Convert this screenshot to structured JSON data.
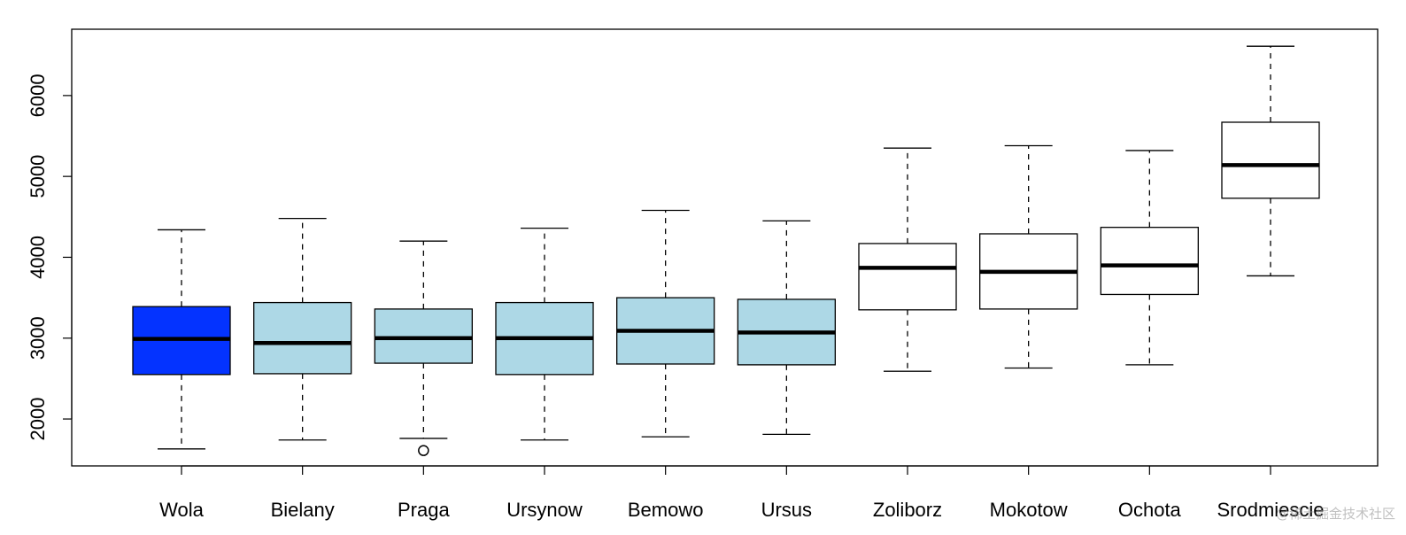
{
  "chart_data": {
    "type": "boxplot",
    "categories": [
      "Wola",
      "Bielany",
      "Praga",
      "Ursynow",
      "Bemowo",
      "Ursus",
      "Zoliborz",
      "Mokotow",
      "Ochota",
      "Srodmiescie"
    ],
    "boxes": [
      {
        "name": "Wola",
        "whisker_low": 1630,
        "q1": 2550,
        "median": 2990,
        "q3": 3390,
        "whisker_high": 4340,
        "outliers": [],
        "fill": "#0433ff"
      },
      {
        "name": "Bielany",
        "whisker_low": 1740,
        "q1": 2560,
        "median": 2940,
        "q3": 3440,
        "whisker_high": 4480,
        "outliers": [],
        "fill": "#add8e6"
      },
      {
        "name": "Praga",
        "whisker_low": 1760,
        "q1": 2690,
        "median": 3000,
        "q3": 3360,
        "whisker_high": 4200,
        "outliers": [
          1610
        ],
        "fill": "#add8e6"
      },
      {
        "name": "Ursynow",
        "whisker_low": 1740,
        "q1": 2550,
        "median": 3000,
        "q3": 3440,
        "whisker_high": 4360,
        "outliers": [],
        "fill": "#add8e6"
      },
      {
        "name": "Bemowo",
        "whisker_low": 1780,
        "q1": 2680,
        "median": 3090,
        "q3": 3500,
        "whisker_high": 4580,
        "outliers": [],
        "fill": "#add8e6"
      },
      {
        "name": "Ursus",
        "whisker_low": 1810,
        "q1": 2670,
        "median": 3070,
        "q3": 3480,
        "whisker_high": 4450,
        "outliers": [],
        "fill": "#add8e6"
      },
      {
        "name": "Zoliborz",
        "whisker_low": 2590,
        "q1": 3350,
        "median": 3870,
        "q3": 4170,
        "whisker_high": 5350,
        "outliers": [],
        "fill": "#ffffff"
      },
      {
        "name": "Mokotow",
        "whisker_low": 2630,
        "q1": 3360,
        "median": 3820,
        "q3": 4290,
        "whisker_high": 5380,
        "outliers": [],
        "fill": "#ffffff"
      },
      {
        "name": "Ochota",
        "whisker_low": 2670,
        "q1": 3540,
        "median": 3900,
        "q3": 4370,
        "whisker_high": 5320,
        "outliers": [],
        "fill": "#ffffff"
      },
      {
        "name": "Srodmiescie",
        "whisker_low": 3770,
        "q1": 4730,
        "median": 5140,
        "q3": 5670,
        "whisker_high": 6610,
        "outliers": [],
        "fill": "#ffffff"
      }
    ],
    "yticks": [
      2000,
      3000,
      4000,
      5000,
      6000
    ],
    "ylim": [
      1420,
      6820
    ],
    "title": "",
    "xlabel": "",
    "ylabel": "",
    "grid": false
  },
  "watermark": "@稀土掘金技术社区"
}
